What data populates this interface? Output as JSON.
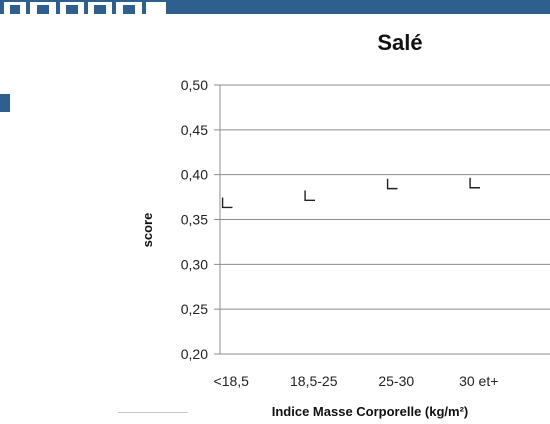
{
  "page": {
    "accent_color": "#2f5f8f",
    "logo_icon": "logo-fragment-icon"
  },
  "chart_data": {
    "type": "scatter",
    "title": "Salé",
    "xlabel": "Indice Masse Corporelle (kg/m²)",
    "ylabel": "score",
    "categories": [
      "<18,5",
      "18,5-25",
      "25-30",
      "30 et+"
    ],
    "series": [
      {
        "values": [
          0.365,
          0.373,
          0.386,
          0.387
        ],
        "marker": "chevron-left",
        "color": "#222222"
      }
    ],
    "ylim": [
      0.2,
      0.5
    ],
    "yticks": [
      "0,50",
      "0,45",
      "0,40",
      "0,35",
      "0,30",
      "0,25",
      "0,20"
    ],
    "ytick_values": [
      0.5,
      0.45,
      0.4,
      0.35,
      0.3,
      0.25,
      0.2
    ],
    "grid": true,
    "legend": "none"
  }
}
